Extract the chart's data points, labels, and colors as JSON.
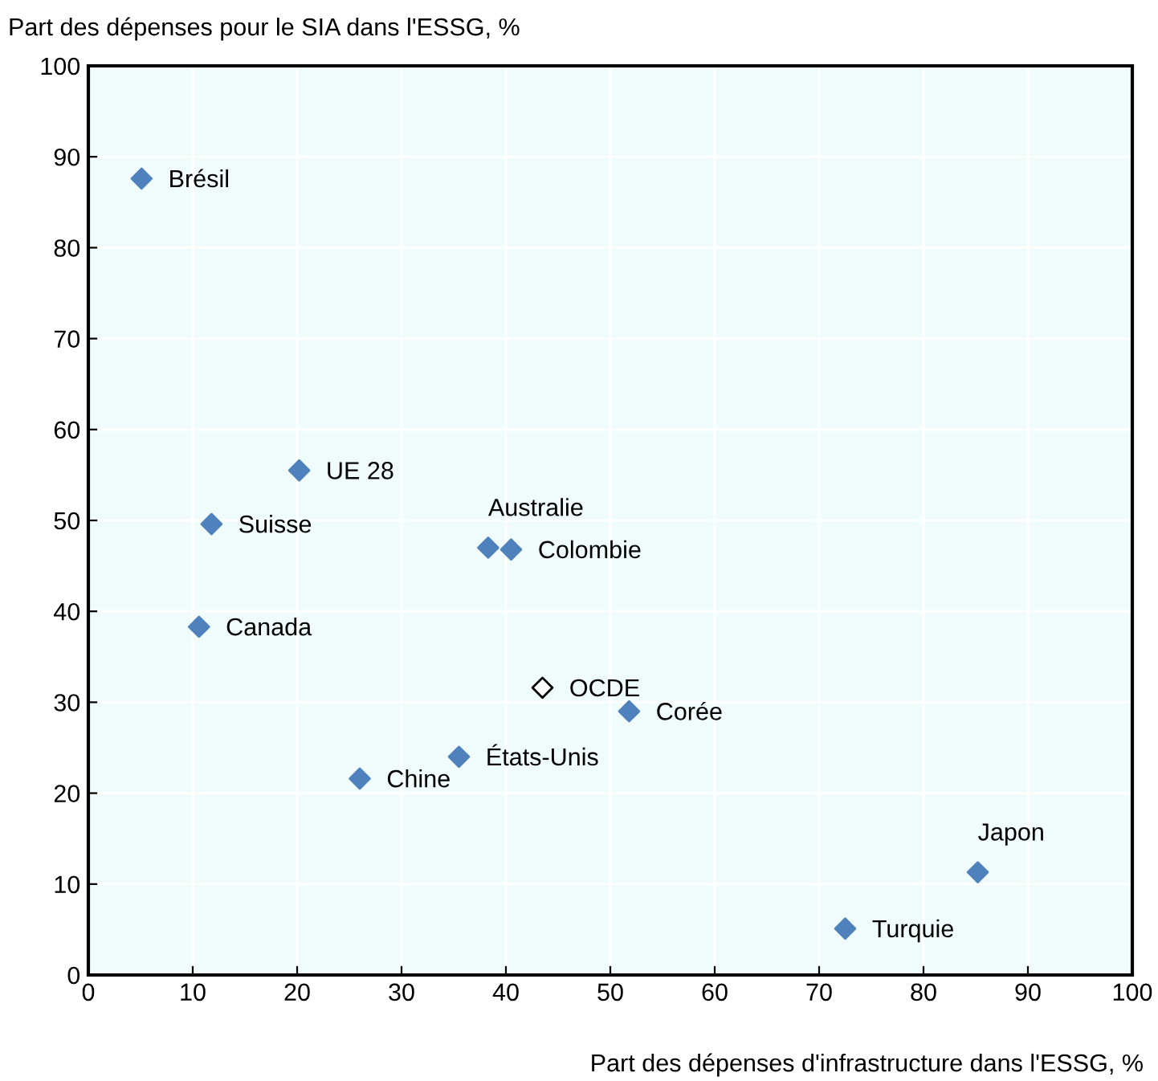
{
  "chart_data": {
    "type": "scatter",
    "ylabel": "Part des dépenses pour le SIA dans l'ESSG, %",
    "xlabel": "Part des dépenses d'infrastructure dans l'ESSG, %",
    "xlim": [
      0,
      100
    ],
    "ylim": [
      0,
      100
    ],
    "xticks": [
      0,
      10,
      20,
      30,
      40,
      50,
      60,
      70,
      80,
      90,
      100
    ],
    "yticks": [
      0,
      10,
      20,
      30,
      40,
      50,
      60,
      70,
      80,
      90,
      100
    ],
    "grid": true,
    "marker": "diamond",
    "series": [
      {
        "color": "#4f81bd",
        "x": [
          5.1,
          20.2,
          11.8,
          38.3,
          40.5,
          10.6,
          51.8,
          35.5,
          26.0,
          85.2,
          72.5
        ],
        "values": [
          87.6,
          55.5,
          49.6,
          47.0,
          46.8,
          38.3,
          29.0,
          24.0,
          21.6,
          11.3,
          5.1
        ]
      },
      {
        "color": "#ffffff",
        "x": [
          43.5
        ],
        "values": [
          31.6
        ]
      }
    ],
    "annotations": [
      {
        "text": "Brésil",
        "x": 5.1,
        "y": 87.6
      },
      {
        "text": "UE 28",
        "x": 20.2,
        "y": 55.5
      },
      {
        "text": "Suisse",
        "x": 11.8,
        "y": 49.6
      },
      {
        "text": "Australie",
        "x": 38.3,
        "y": 47.0
      },
      {
        "text": "Colombie",
        "x": 40.5,
        "y": 46.8
      },
      {
        "text": "Canada",
        "x": 10.6,
        "y": 38.3
      },
      {
        "text": "Corée",
        "x": 51.8,
        "y": 29.0
      },
      {
        "text": "États-Unis",
        "x": 35.5,
        "y": 24.0
      },
      {
        "text": "Chine",
        "x": 26.0,
        "y": 21.6
      },
      {
        "text": "Japon",
        "x": 85.2,
        "y": 11.3
      },
      {
        "text": "Turquie",
        "x": 72.5,
        "y": 5.1
      },
      {
        "text": "OCDE",
        "x": 43.5,
        "y": 31.6
      }
    ]
  }
}
